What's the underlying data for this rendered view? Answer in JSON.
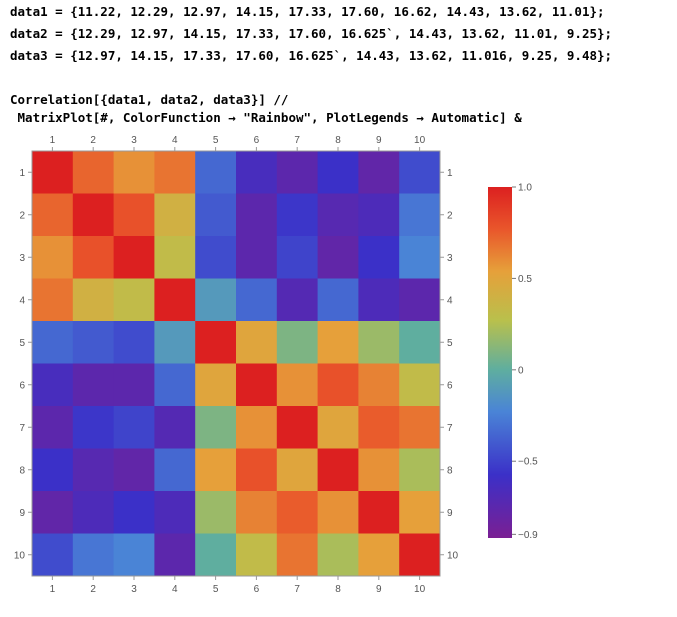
{
  "notebook": {
    "input_lines": [
      "data1 = {11.22, 12.29, 12.97, 14.15, 17.33, 17.60, 16.62, 14.43, 13.62, 11.01};",
      "data2 = {12.29, 12.97, 14.15, 17.33, 17.60, 16.625`, 14.43, 13.62, 11.01, 9.25};",
      "data3 = {12.97, 14.15, 17.33, 17.60, 16.625`, 14.43, 13.62, 11.016, 9.25, 9.48};",
      "",
      "Correlation[{data1, data2, data3}] //",
      " MatrixPlot[#, ColorFunction → \"Rainbow\", PlotLegends → Automatic] &"
    ]
  },
  "chart_data": {
    "type": "heatmap",
    "row_labels": [
      "1",
      "2",
      "3",
      "4",
      "5",
      "6",
      "7",
      "8",
      "9",
      "10"
    ],
    "col_labels": [
      "1",
      "2",
      "3",
      "4",
      "5",
      "6",
      "7",
      "8",
      "9",
      "10"
    ],
    "values": [
      [
        1.0,
        0.75,
        0.6,
        0.7,
        -0.55,
        -0.8,
        -0.88,
        -0.75,
        -0.9,
        -0.65
      ],
      [
        0.75,
        1.0,
        0.82,
        0.4,
        -0.6,
        -0.88,
        -0.73,
        -0.86,
        -0.82,
        -0.5
      ],
      [
        0.6,
        0.82,
        1.0,
        0.3,
        -0.65,
        -0.88,
        -0.68,
        -0.9,
        -0.75,
        -0.45
      ],
      [
        0.7,
        0.4,
        0.3,
        1.0,
        -0.25,
        -0.55,
        -0.85,
        -0.55,
        -0.82,
        -0.88
      ],
      [
        -0.55,
        -0.6,
        -0.65,
        -0.25,
        1.0,
        0.5,
        0.05,
        0.55,
        0.15,
        -0.05
      ],
      [
        -0.8,
        -0.88,
        -0.88,
        -0.55,
        0.5,
        1.0,
        0.6,
        0.82,
        0.65,
        0.3
      ],
      [
        -0.88,
        -0.73,
        -0.68,
        -0.85,
        0.05,
        0.6,
        1.0,
        0.5,
        0.78,
        0.7
      ],
      [
        -0.75,
        -0.86,
        -0.9,
        -0.55,
        0.55,
        0.82,
        0.5,
        1.0,
        0.6,
        0.2
      ],
      [
        -0.9,
        -0.82,
        -0.75,
        -0.82,
        0.15,
        0.65,
        0.78,
        0.6,
        1.0,
        0.55
      ],
      [
        -0.65,
        -0.5,
        -0.45,
        -0.88,
        -0.05,
        0.3,
        0.7,
        0.2,
        0.55,
        1.0
      ]
    ],
    "value_range": [
      -1.0,
      1.0
    ],
    "legend": {
      "ticks": [
        1.0,
        0.5,
        0,
        -0.5,
        -0.9
      ],
      "tick_labels": [
        "1.0",
        "0.5",
        "0",
        "−0.5",
        "−0.9"
      ],
      "range": [
        -0.92,
        1.0
      ],
      "position": "right"
    },
    "color_function": "Rainbow"
  }
}
